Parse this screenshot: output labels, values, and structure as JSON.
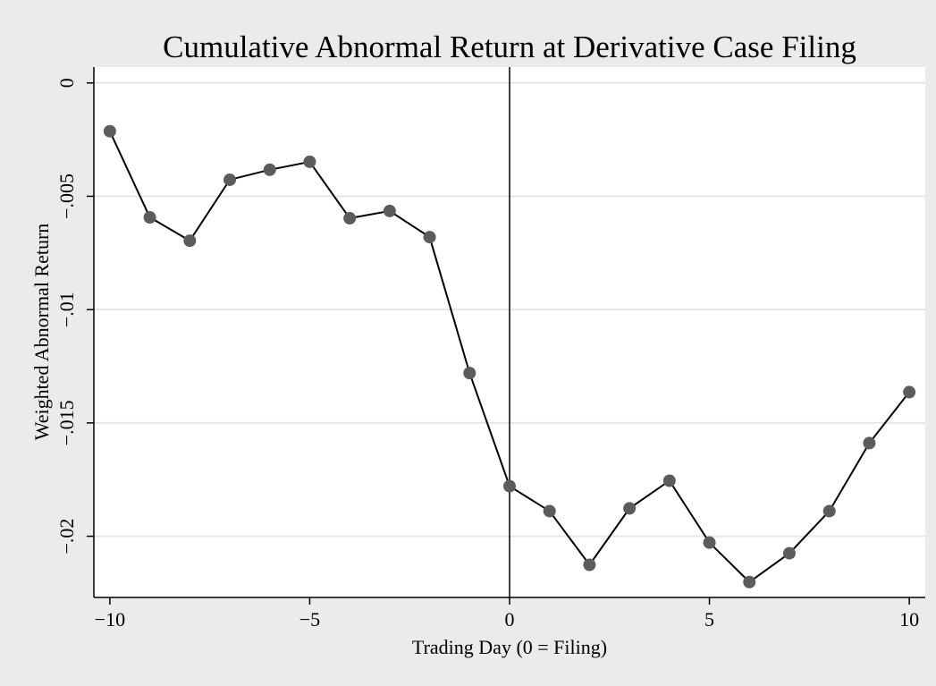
{
  "chart_data": {
    "type": "line",
    "title": "Cumulative Abnormal Return at Derivative Case Filing",
    "x_label": "Trading Day (0 = Filing)",
    "y_label": "Weighted Abnormal Return",
    "x": [
      -10,
      -9,
      -8,
      -7,
      -6,
      -5,
      -4,
      -3,
      -2,
      -1,
      0,
      1,
      2,
      3,
      4,
      5,
      6,
      7,
      8,
      9,
      10
    ],
    "series": [
      {
        "name": "Weighted Abnormal Return",
        "color": "#5c5c5c",
        "line_color": "#000000",
        "values": [
          -0.00213,
          -0.00593,
          -0.00696,
          -0.00427,
          -0.00383,
          -0.00348,
          -0.00597,
          -0.00565,
          -0.0068,
          -0.0128,
          -0.01779,
          -0.01889,
          -0.02126,
          -0.01877,
          -0.01755,
          -0.02028,
          -0.02202,
          -0.02075,
          -0.01889,
          -0.01589,
          -0.01364
        ]
      }
    ],
    "xlim": [
      -10.4,
      10.4
    ],
    "xticks": [
      {
        "value": -10,
        "label": "−10"
      },
      {
        "value": -5,
        "label": "−5"
      },
      0,
      5,
      10
    ],
    "ylim": [
      -0.0227,
      0.0007
    ],
    "yticks": [
      0,
      {
        "value": -0.005,
        "label": "−.005"
      },
      {
        "value": -0.01,
        "label": "−.01"
      },
      {
        "value": -0.015,
        "label": "−.015"
      },
      {
        "value": -0.02,
        "label": "−.02"
      }
    ],
    "xline": 0,
    "grid": true
  }
}
